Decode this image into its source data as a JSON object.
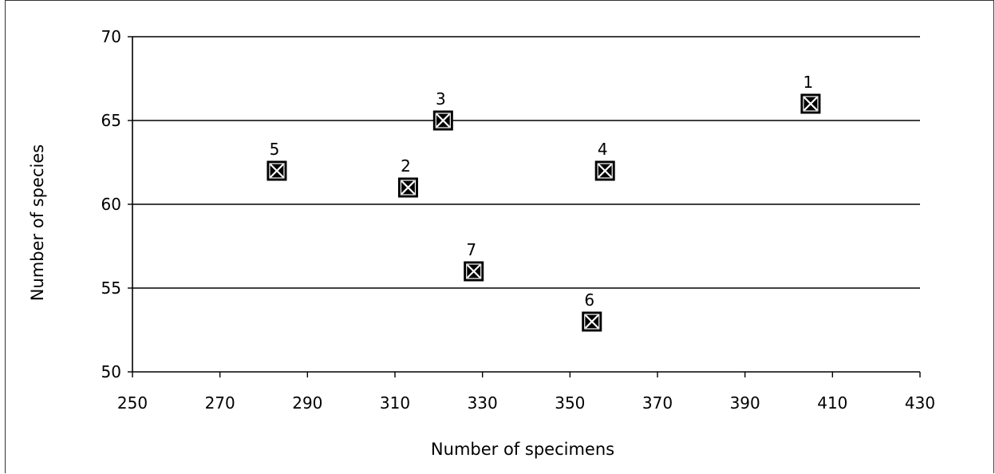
{
  "chart_data": {
    "type": "scatter",
    "title": "",
    "xlabel": "Number of specimens",
    "ylabel": "Number of species",
    "xlim": [
      250,
      430
    ],
    "ylim": [
      50,
      70
    ],
    "x_ticks": [
      250,
      270,
      290,
      310,
      330,
      350,
      370,
      390,
      410,
      430
    ],
    "y_ticks": [
      50,
      55,
      60,
      65,
      70
    ],
    "grid": "horizontal",
    "legend": "none",
    "marker": "boxed-x",
    "points": [
      {
        "label": "1",
        "x": 405,
        "y": 66
      },
      {
        "label": "2",
        "x": 313,
        "y": 61
      },
      {
        "label": "3",
        "x": 321,
        "y": 65
      },
      {
        "label": "4",
        "x": 358,
        "y": 62
      },
      {
        "label": "5",
        "x": 283,
        "y": 62
      },
      {
        "label": "6",
        "x": 355,
        "y": 53
      },
      {
        "label": "7",
        "x": 328,
        "y": 56
      }
    ],
    "colors": {
      "marker": "#000000",
      "axis": "#000000",
      "grid": "#000000"
    }
  }
}
